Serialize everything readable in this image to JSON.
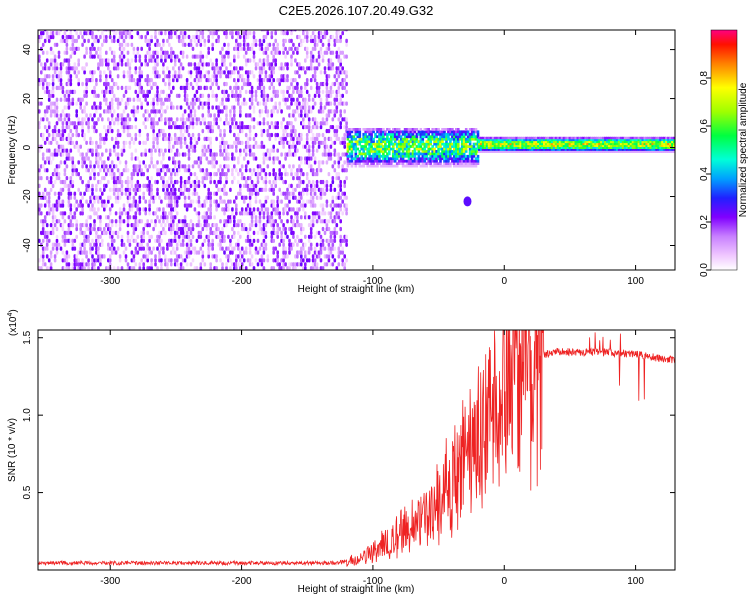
{
  "chart_data": [
    {
      "type": "heatmap",
      "title": "C2E5.2026.107.20.49.G32",
      "xlabel": "Height of straight line (km)",
      "ylabel": "Frequency (Hz)",
      "xlim": [
        -355,
        130
      ],
      "ylim": [
        -50,
        48
      ],
      "xticks": [
        -300,
        -200,
        -100,
        0,
        100
      ],
      "xtick_labels": [
        "-300",
        "-200",
        "-100",
        "0",
        "100"
      ],
      "yticks": [
        40,
        20,
        0,
        -20,
        -40
      ],
      "ytick_labels": [
        "40",
        "20",
        "0",
        "-20",
        "-40"
      ],
      "colorbar": {
        "label": "Normalized spectral amplitude",
        "range": [
          0,
          1
        ],
        "ticks": [
          0.0,
          0.2,
          0.4,
          0.6,
          0.8
        ],
        "tick_labels": [
          "0.0",
          "0.2",
          "0.4",
          "0.6",
          "0.8"
        ]
      },
      "regions": [
        {
          "name": "broadband noise",
          "x_range": [
            -355,
            -120
          ],
          "freq_range": [
            -50,
            48
          ],
          "amplitude": 0.15
        },
        {
          "name": "noisy transition",
          "x_range": [
            -120,
            -20
          ],
          "freq_center": 0,
          "freq_halfwidth": 8,
          "amplitude": 0.4
        },
        {
          "name": "tone track",
          "x_range": [
            -20,
            130
          ],
          "freq_center": 1,
          "freq_halfwidth": 3,
          "amplitude": 0.75
        }
      ],
      "annotations": [
        {
          "x": -28,
          "freq": -22,
          "amplitude": 0.15
        }
      ]
    },
    {
      "type": "line",
      "xlabel": "Height of straight line (km)",
      "ylabel": "SNR (10 * v/v)",
      "y_exponent_label": "(x10",
      "y_exponent_value": "4",
      "xlim": [
        -355,
        130
      ],
      "ylim": [
        0,
        15500
      ],
      "xticks": [
        -300,
        -200,
        -100,
        0,
        100
      ],
      "xtick_labels": [
        "-300",
        "-200",
        "-100",
        "0",
        "100"
      ],
      "yticks": [
        5000,
        10000,
        15000
      ],
      "ytick_labels": [
        "0.5",
        "1.0",
        "1.5"
      ],
      "series": [
        {
          "name": "SNR",
          "color": "#ee2222",
          "profile": {
            "x": [
              -355,
              -300,
              -200,
              -130,
              -110,
              -95,
              -80,
              -60,
              -40,
              -20,
              -10,
              0,
              10,
              20,
              30,
              40,
              50,
              60,
              70,
              80,
              90,
              100,
              110,
              120,
              130
            ],
            "y": [
              450,
              450,
              450,
              450,
              700,
              1500,
              2500,
              3500,
              5500,
              8000,
              10500,
              12000,
              13000,
              13600,
              13900,
              14100,
              14100,
              14050,
              14100,
              14050,
              14000,
              13950,
              13800,
              13650,
              13600
            ]
          }
        }
      ]
    }
  ]
}
